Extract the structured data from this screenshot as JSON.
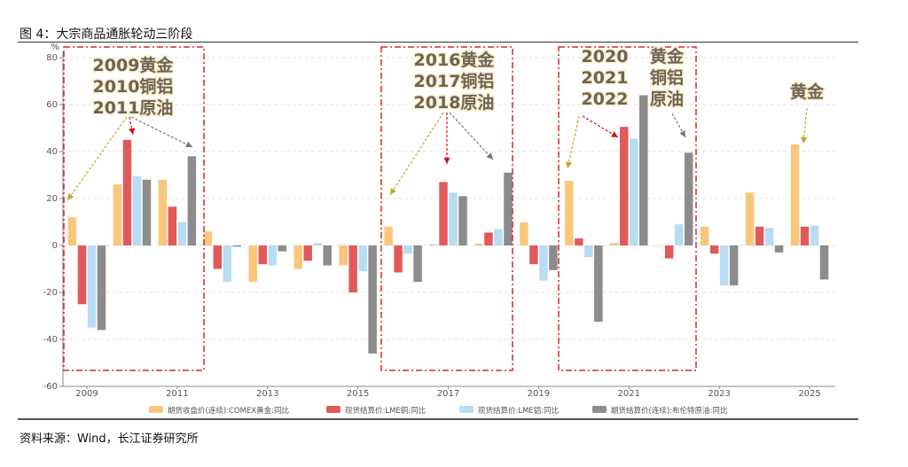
{
  "title": "图 4：大宗商品通胀轮动三阶段",
  "source": "资料来源：Wind，长江证券研究所",
  "chart_data": {
    "type": "bar",
    "title": "",
    "ylabel": "%",
    "xlabel": "",
    "ylim": [
      -60,
      80
    ],
    "yticks": [
      80,
      60,
      40,
      20,
      0,
      -20,
      -40,
      -60
    ],
    "grid": true,
    "legend_position": "bottom",
    "categories": [
      "2009",
      "2010",
      "2011",
      "2012",
      "2013",
      "2014",
      "2015",
      "2016",
      "2017",
      "2018",
      "2019",
      "2020",
      "2021",
      "2022",
      "2023",
      "2024",
      "2025"
    ],
    "xtick_labels": [
      "2009",
      "2011",
      "2013",
      "2015",
      "2017",
      "2019",
      "2021",
      "2023",
      "2025"
    ],
    "series": [
      {
        "name": "期货收盘价(连续):COMEX黄金:同比",
        "color": "#f9c77c",
        "values": [
          12,
          26,
          28,
          6,
          -15.5,
          -10,
          -8.5,
          8,
          0.5,
          0.8,
          9.8,
          27.5,
          1,
          0,
          8,
          22.5,
          43
        ]
      },
      {
        "name": "现货结算价:LME铜:同比",
        "color": "#e05a5c",
        "values": [
          -25,
          45,
          16.5,
          -10,
          -8,
          -6.5,
          -20,
          -11.5,
          27,
          5.5,
          -8,
          3,
          50.5,
          -5.5,
          -3.5,
          8,
          8
        ]
      },
      {
        "name": "现货结算价:LME铝:同比",
        "color": "#b8dcf2",
        "values": [
          -35,
          29.5,
          10,
          -15.5,
          -8.5,
          1,
          -11,
          -3.5,
          22.5,
          7,
          -15,
          -5,
          45.5,
          9,
          -17,
          7.5,
          8.5
        ]
      },
      {
        "name": "期货结算价(连续):布伦特原油:同比",
        "color": "#8c8c8c",
        "values": [
          -36,
          28,
          38,
          -0.5,
          -2.5,
          -8.5,
          -46,
          -15.5,
          21,
          31,
          -10.5,
          -32.5,
          64,
          39.5,
          -17,
          -3,
          -14.5
        ]
      }
    ],
    "annotations": [
      {
        "lines": [
          "2009黄金",
          "2010铜铝",
          "2011原油"
        ]
      },
      {
        "lines": [
          "2016黄金",
          "2017铜铝",
          "2018原油"
        ]
      },
      {
        "lines": [
          "2020",
          "2021",
          "2022"
        ]
      },
      {
        "lines": [
          "黄金",
          "铜铝",
          "原油"
        ]
      },
      {
        "lines": [
          "黄金"
        ]
      }
    ]
  }
}
